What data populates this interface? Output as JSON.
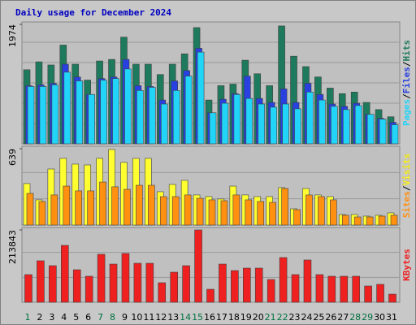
{
  "chart_data": {
    "type": "bar",
    "title": "Daily usage for December 2024",
    "categories": [
      "1",
      "2",
      "3",
      "4",
      "5",
      "6",
      "7",
      "8",
      "9",
      "10",
      "11",
      "12",
      "13",
      "14",
      "15",
      "16",
      "17",
      "18",
      "19",
      "20",
      "21",
      "22",
      "23",
      "24",
      "25",
      "26",
      "27",
      "28",
      "29",
      "30",
      "31"
    ],
    "category_colors": [
      "#007040",
      "#000000",
      "#000000",
      "#000000",
      "#000000",
      "#000000",
      "#007040",
      "#007040",
      "#000000",
      "#000000",
      "#000000",
      "#000000",
      "#000000",
      "#007040",
      "#007040",
      "#000000",
      "#000000",
      "#000000",
      "#000000",
      "#000000",
      "#007040",
      "#007040",
      "#000000",
      "#000000",
      "#000000",
      "#000000",
      "#000000",
      "#007040",
      "#007040",
      "#000000",
      "#000000"
    ],
    "legend_separator": "/",
    "panels": [
      {
        "ylim": [
          0,
          1974
        ],
        "yticks": [
          1974
        ],
        "series": [
          {
            "name": "Hits",
            "color": "#1e7a5c",
            "values": [
              1224,
              1355,
              1303,
              1632,
              1316,
              1053,
              1369,
              1395,
              1763,
              1316,
              1316,
              1145,
              1316,
              1487,
              1921,
              724,
              961,
              987,
              1382,
              1158,
              961,
              1948,
              1448,
              1276,
              1105,
              921,
              829,
              855,
              684,
              566,
              447
            ]
          },
          {
            "name": "Files",
            "color": "#2840e0",
            "values": [
              961,
              974,
              1000,
              1316,
              1105,
              816,
              1079,
              1105,
              1395,
              961,
              948,
              724,
              1040,
              1211,
              1579,
              513,
              737,
              829,
              1119,
              750,
              684,
              908,
              684,
              1000,
              816,
              658,
              619,
              671,
              487,
              421,
              355
            ]
          },
          {
            "name": "Pages",
            "color": "#22d4f8",
            "values": [
              948,
              948,
              974,
              1184,
              1040,
              816,
              1053,
              1079,
              1237,
              882,
              934,
              658,
              882,
              1119,
              1516,
              513,
              671,
              816,
              750,
              658,
              605,
              658,
              579,
              855,
              724,
              619,
              566,
              632,
              487,
              408,
              316
            ]
          }
        ]
      },
      {
        "ylim": [
          0,
          639
        ],
        "yticks": [
          639
        ],
        "series": [
          {
            "name": "Visits",
            "color": "#ffff30",
            "values": [
              347,
              211,
              469,
              558,
              510,
              503,
              558,
              632,
              524,
              558,
              558,
              279,
              340,
              374,
              252,
              238,
              218,
              326,
              252,
              238,
              238,
              313,
              136,
              306,
              252,
              238,
              88,
              88,
              75,
              82,
              102
            ]
          },
          {
            "name": "Sites",
            "color": "#ff9010",
            "values": [
              265,
              197,
              252,
              326,
              286,
              286,
              360,
              320,
              299,
              333,
              333,
              238,
              238,
              252,
              224,
              211,
              204,
              252,
              211,
              197,
              190,
              306,
              129,
              252,
              238,
              211,
              82,
              68,
              68,
              75,
              82
            ]
          }
        ]
      },
      {
        "ylim": [
          0,
          213843
        ],
        "yticks": [
          213843
        ],
        "series": [
          {
            "name": "KBytes",
            "color": "#ee2020",
            "values": [
              81700,
              122600,
              108100,
              168200,
              96100,
              76900,
              141800,
              112900,
              144200,
              115300,
              115300,
              57700,
              88900,
              108100,
              213843,
              38400,
              112900,
              93700,
              100900,
              100900,
              67300,
              132200,
              81700,
              125000,
              81700,
              76900,
              76900,
              76900,
              48100,
              52900,
              24000
            ]
          }
        ]
      }
    ]
  }
}
